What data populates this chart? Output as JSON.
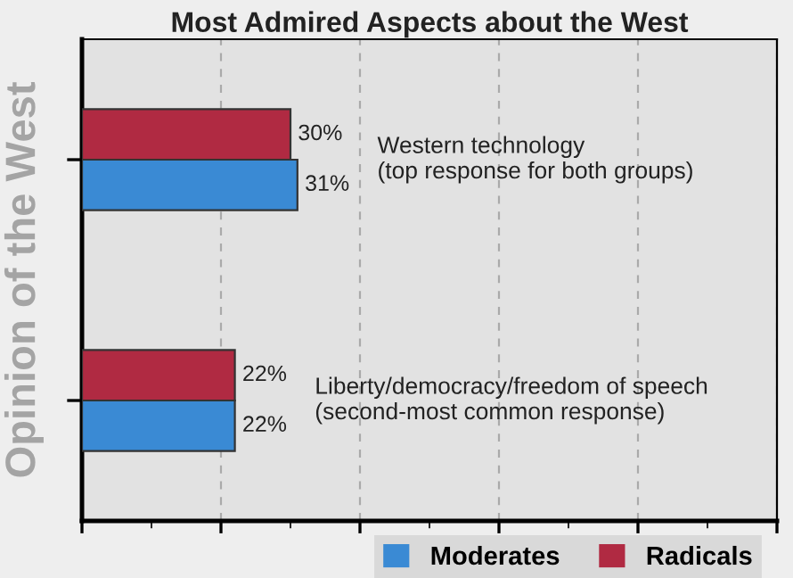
{
  "chart_data": {
    "type": "bar",
    "orientation": "horizontal",
    "title": "Most Admired Aspects about the West",
    "ylabel": "Opinion of the West",
    "categories": [
      "Western technology\n(top response for both groups)",
      "Liberty/democracy/freedom of speech\n(second-most common response)"
    ],
    "series": [
      {
        "name": "Radicals",
        "color": "#b02a42",
        "values": [
          30,
          22
        ],
        "value_labels": [
          "30%",
          "22%"
        ]
      },
      {
        "name": "Moderates",
        "color": "#3a8ad4",
        "values": [
          31,
          22
        ],
        "value_labels": [
          "31%",
          "22%"
        ]
      }
    ],
    "xlim": [
      0,
      100
    ],
    "xticks": [
      {
        "value": 0,
        "label": null
      },
      {
        "value": 20,
        "label": null
      },
      {
        "value": 40,
        "label": null
      },
      {
        "value": 60,
        "label": null
      },
      {
        "value": 80,
        "label": null
      },
      {
        "value": 100,
        "label": null
      }
    ],
    "grid": "x",
    "legend": "bottom right"
  }
}
